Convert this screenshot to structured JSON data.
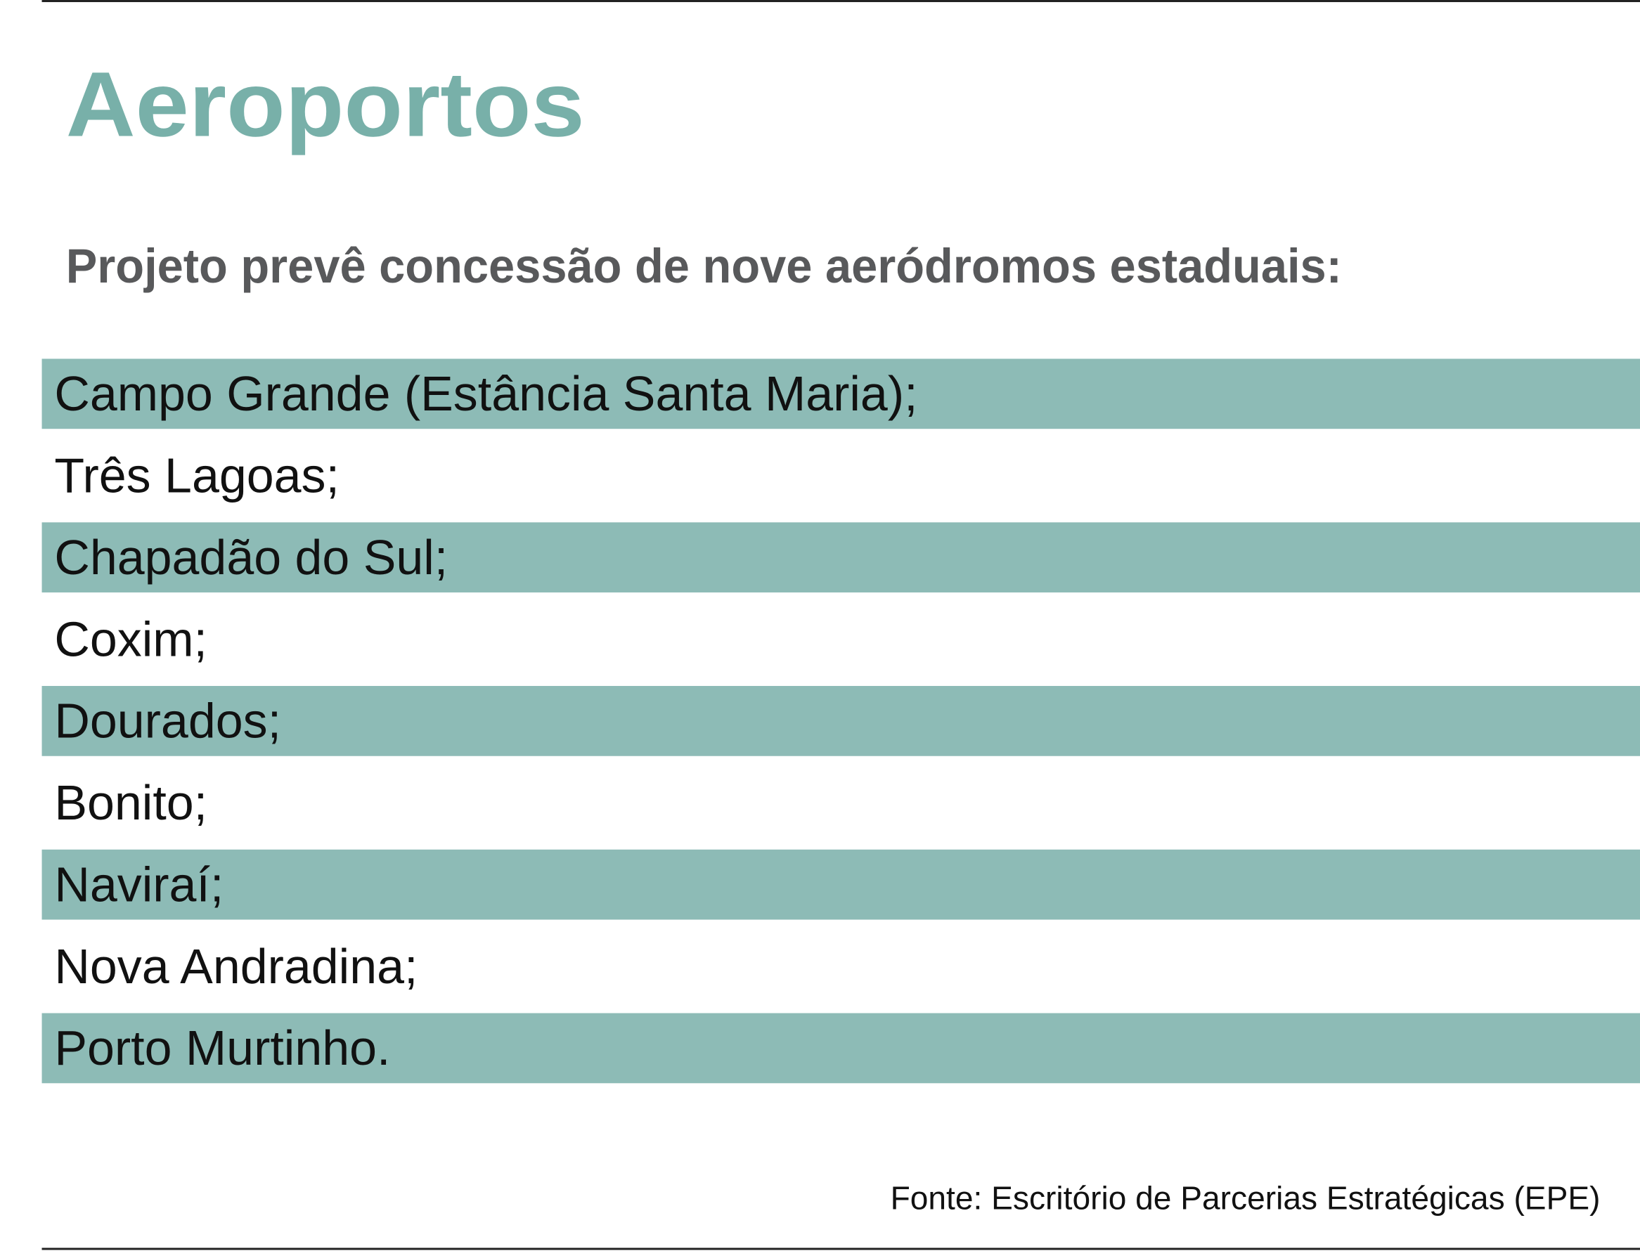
{
  "header": {
    "title": "Aeroportos",
    "subtitle": "Projeto prevê concessão de nove aeródromos estaduais:"
  },
  "list": {
    "items": [
      "Campo Grande (Estância Santa Maria);",
      "Três Lagoas;",
      "Chapadão do Sul;",
      "Coxim;",
      "Dourados;",
      "Bonito;",
      "Naviraí;",
      "Nova Andradina;",
      "Porto Murtinho."
    ]
  },
  "footer": {
    "source": "Fonte: Escritório de Parcerias Estratégicas (EPE)"
  }
}
